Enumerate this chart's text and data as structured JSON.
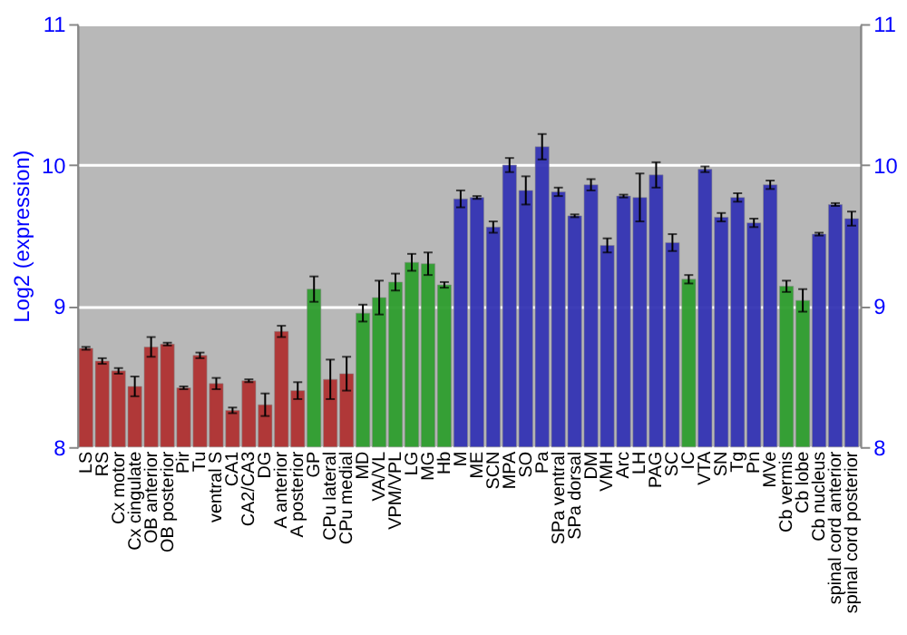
{
  "chart_data": {
    "type": "bar",
    "ylabel": "Log2 (expression)",
    "categories": [
      "LS",
      "RS",
      "Cx motor",
      "Cx cingulate",
      "OB anterior",
      "OB posterior",
      "Pir",
      "Tu",
      "ventral S",
      "CA1",
      "CA2/CA3",
      "DG",
      "A anterior",
      "A posterior",
      "GP",
      "CPu lateral",
      "CPu medial",
      "MD",
      "VA/VL",
      "VPM/VPL",
      "LG",
      "MG",
      "Hb",
      "M",
      "ME",
      "SCN",
      "MPA",
      "SO",
      "Pa",
      "SPa ventral",
      "SPa dorsal",
      "DM",
      "VMH",
      "Arc",
      "LH",
      "PAG",
      "SC",
      "IC",
      "VTA",
      "SN",
      "Tg",
      "Pn",
      "MVe",
      "Cb vermis",
      "Cb lobe",
      "Cb nucleus",
      "spinal cord anterior",
      "spinal cord posterior"
    ],
    "values": [
      8.7,
      8.61,
      8.54,
      8.43,
      8.71,
      8.73,
      8.42,
      8.65,
      8.45,
      8.26,
      8.47,
      8.3,
      8.82,
      8.4,
      9.12,
      8.48,
      8.52,
      8.95,
      9.06,
      9.17,
      9.31,
      9.3,
      9.15,
      9.76,
      9.77,
      9.56,
      10.0,
      9.82,
      10.13,
      9.81,
      9.64,
      9.86,
      9.43,
      9.78,
      9.77,
      9.93,
      9.45,
      9.19,
      9.97,
      9.63,
      9.77,
      9.59,
      9.86,
      9.14,
      9.04,
      9.51,
      9.72,
      9.62
    ],
    "errors": [
      0.01,
      0.02,
      0.02,
      0.07,
      0.07,
      0.01,
      0.01,
      0.02,
      0.04,
      0.02,
      0.01,
      0.08,
      0.04,
      0.06,
      0.09,
      0.14,
      0.12,
      0.06,
      0.12,
      0.06,
      0.06,
      0.08,
      0.02,
      0.06,
      0.01,
      0.04,
      0.05,
      0.1,
      0.09,
      0.03,
      0.01,
      0.04,
      0.05,
      0.01,
      0.17,
      0.09,
      0.06,
      0.03,
      0.02,
      0.03,
      0.03,
      0.03,
      0.03,
      0.04,
      0.08,
      0.01,
      0.01,
      0.05
    ],
    "colors": [
      "#b03232",
      "#b03232",
      "#b03232",
      "#b03232",
      "#b03232",
      "#b03232",
      "#b03232",
      "#b03232",
      "#b03232",
      "#b03232",
      "#b03232",
      "#b03232",
      "#b03232",
      "#b03232",
      "#2f9e2f",
      "#b03232",
      "#b03232",
      "#2f9e2f",
      "#2f9e2f",
      "#2f9e2f",
      "#2f9e2f",
      "#2f9e2f",
      "#2f9e2f",
      "#3434b4",
      "#3434b4",
      "#3434b4",
      "#3434b4",
      "#3434b4",
      "#3434b4",
      "#3434b4",
      "#3434b4",
      "#3434b4",
      "#3434b4",
      "#3434b4",
      "#3434b4",
      "#3434b4",
      "#3434b4",
      "#2f9e2f",
      "#3434b4",
      "#3434b4",
      "#3434b4",
      "#3434b4",
      "#3434b4",
      "#2f9e2f",
      "#2f9e2f",
      "#3434b4",
      "#3434b4",
      "#3434b4"
    ],
    "ylim": [
      8,
      11
    ],
    "yticks": [
      8,
      9,
      10,
      11
    ],
    "y2lim": [
      8,
      11
    ],
    "y2ticks": [
      8,
      9,
      10,
      11
    ],
    "grid": "y"
  }
}
